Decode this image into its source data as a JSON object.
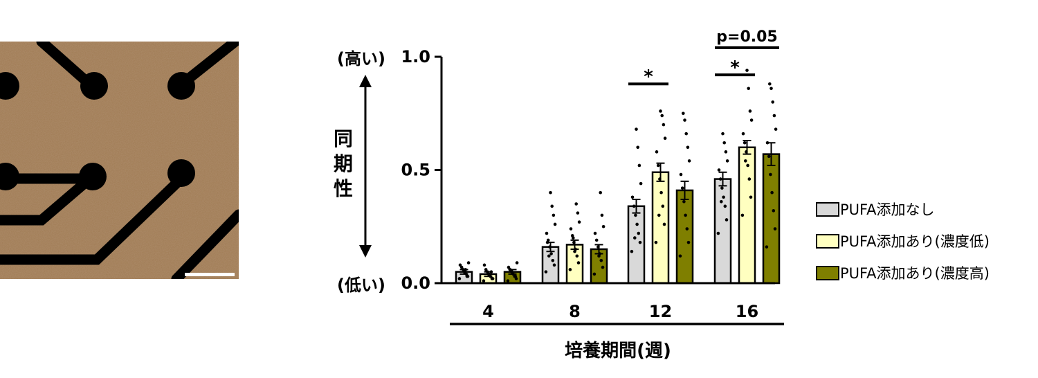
{
  "chart_data": {
    "type": "bar",
    "ylabel": "同期性",
    "ylabel_chars": [
      "同",
      "期",
      "性"
    ],
    "y_high_label": "(高い)",
    "y_low_label": "(低い)",
    "xlabel": "培養期間(週)",
    "ylim": [
      0,
      1.0
    ],
    "yticks": [
      0.0,
      0.5,
      1.0
    ],
    "ytick_labels": [
      "0.0",
      "0.5",
      "1.0"
    ],
    "categories": [
      "4",
      "8",
      "12",
      "16"
    ],
    "series": [
      {
        "name": "PUFA添加なし",
        "color": "#d9d9d9",
        "values": [
          0.05,
          0.16,
          0.34,
          0.46
        ],
        "errors": [
          0.01,
          0.02,
          0.03,
          0.03
        ],
        "points": [
          [
            0.02,
            0.03,
            0.04,
            0.05,
            0.06,
            0.07,
            0.08,
            0.09,
            0.03,
            0.06
          ],
          [
            0.05,
            0.08,
            0.1,
            0.13,
            0.16,
            0.19,
            0.22,
            0.26,
            0.3,
            0.34,
            0.4,
            0.12,
            0.18
          ],
          [
            0.14,
            0.18,
            0.22,
            0.26,
            0.3,
            0.34,
            0.38,
            0.44,
            0.52,
            0.6,
            0.68,
            0.2
          ],
          [
            0.22,
            0.28,
            0.34,
            0.38,
            0.42,
            0.46,
            0.5,
            0.54,
            0.58,
            0.62,
            0.66,
            0.36
          ]
        ]
      },
      {
        "name": "PUFA添加あり(濃度低)",
        "color": "#ffffc0",
        "values": [
          0.04,
          0.17,
          0.49,
          0.6
        ],
        "errors": [
          0.01,
          0.02,
          0.04,
          0.03
        ],
        "points": [
          [
            0.01,
            0.02,
            0.03,
            0.04,
            0.05,
            0.06,
            0.08,
            0.02,
            0.05
          ],
          [
            0.06,
            0.09,
            0.12,
            0.15,
            0.18,
            0.21,
            0.24,
            0.27,
            0.31,
            0.35,
            0.14,
            0.2
          ],
          [
            0.18,
            0.26,
            0.34,
            0.4,
            0.46,
            0.52,
            0.58,
            0.64,
            0.7,
            0.74,
            0.76,
            0.3
          ],
          [
            0.3,
            0.38,
            0.46,
            0.52,
            0.58,
            0.62,
            0.66,
            0.72,
            0.76,
            0.86,
            0.94,
            0.54
          ]
        ]
      },
      {
        "name": "PUFA添加あり(濃度高)",
        "color": "#7f7f00",
        "values": [
          0.05,
          0.15,
          0.41,
          0.57
        ],
        "errors": [
          0.01,
          0.02,
          0.04,
          0.05
        ],
        "points": [
          [
            0.01,
            0.02,
            0.03,
            0.04,
            0.05,
            0.06,
            0.07,
            0.09,
            0.03
          ],
          [
            0.04,
            0.07,
            0.1,
            0.13,
            0.16,
            0.19,
            0.22,
            0.25,
            0.3,
            0.4,
            0.12
          ],
          [
            0.12,
            0.18,
            0.24,
            0.3,
            0.36,
            0.42,
            0.48,
            0.54,
            0.6,
            0.66,
            0.72,
            0.75
          ],
          [
            0.16,
            0.24,
            0.32,
            0.4,
            0.48,
            0.56,
            0.62,
            0.68,
            0.74,
            0.8,
            0.86,
            0.88
          ]
        ]
      }
    ],
    "annotations": [
      {
        "text": "*",
        "category": "12",
        "from_series": 0,
        "to_series": 1,
        "y": 0.88
      },
      {
        "text": "*",
        "category": "16",
        "from_series": 0,
        "to_series": 1,
        "y": 0.92
      },
      {
        "text": "p=0.05",
        "category": "16",
        "from_series": 0,
        "to_series": 2,
        "y": 1.04
      }
    ],
    "legend_position": "right"
  },
  "micrograph": {
    "description_icon": "neuron-culture-on-electrode-array",
    "background_color": "#a07a52",
    "electrode_color": "#000000",
    "scale_bar_color": "#ffffff"
  }
}
